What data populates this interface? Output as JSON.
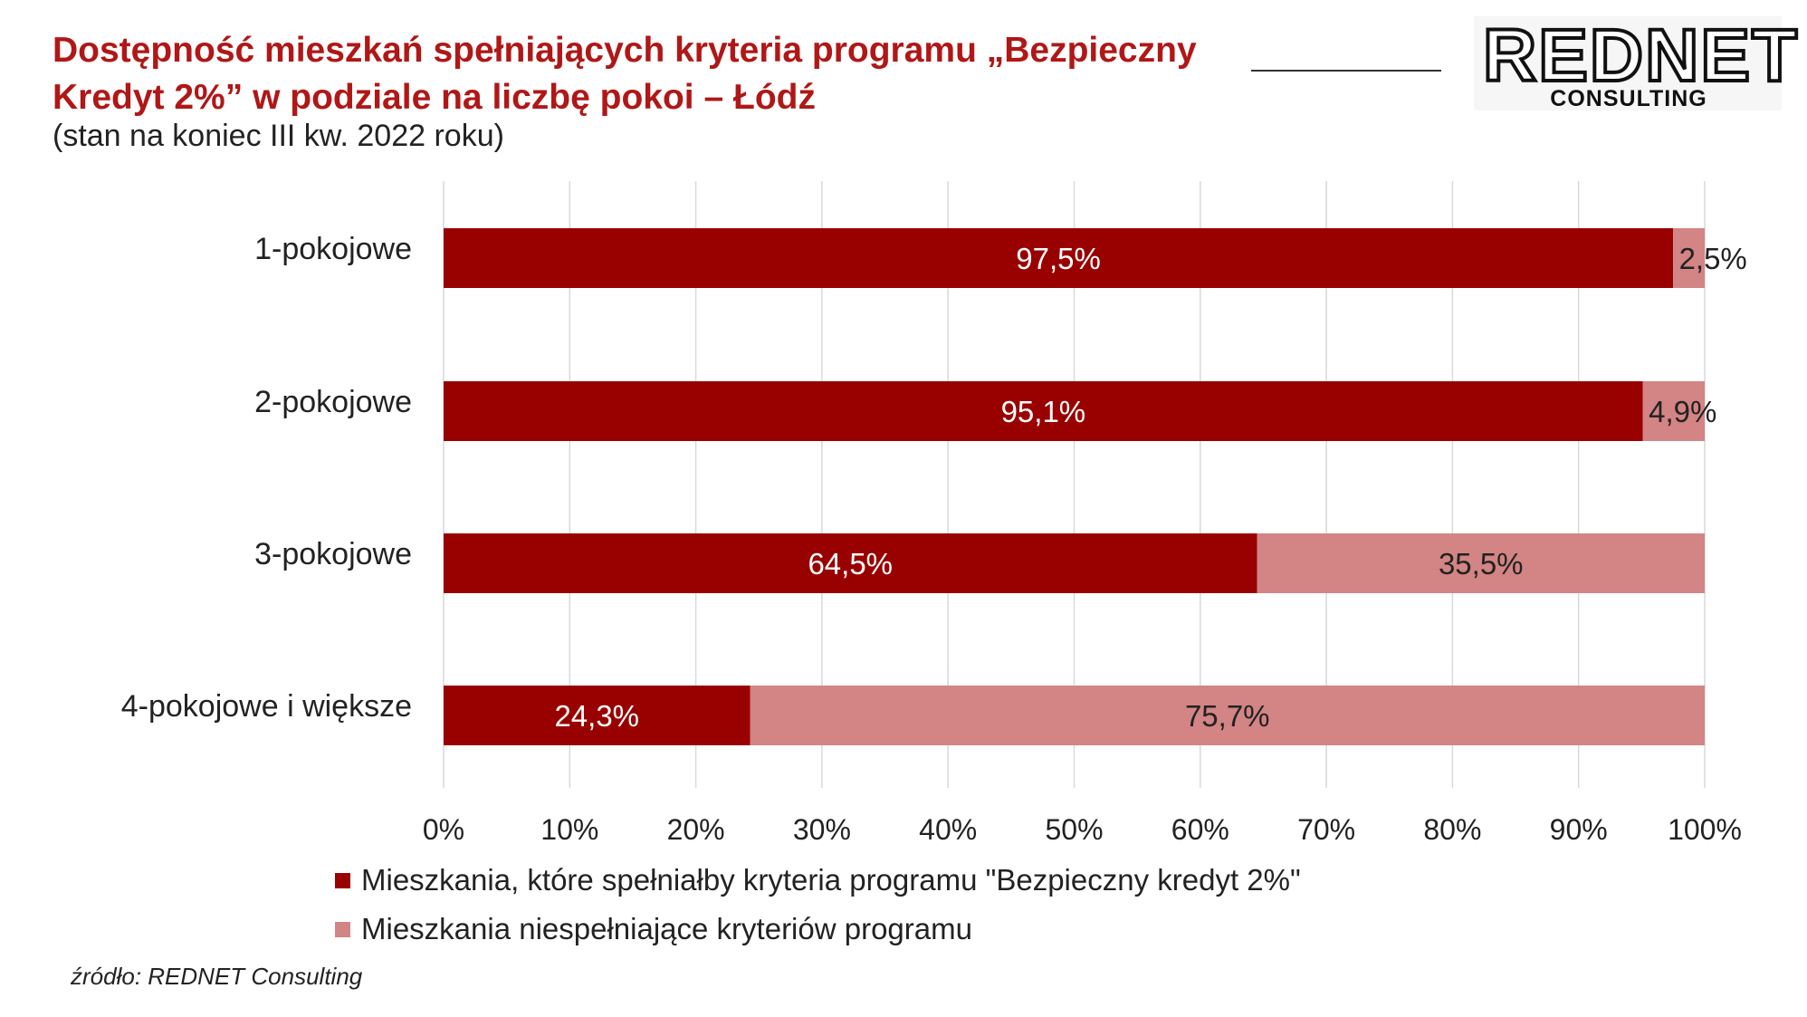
{
  "header": {
    "title": "Dostępność mieszkań spełniających kryteria programu „Bezpieczny Kredyt 2%” w podziale na liczbę pokoi – Łódź",
    "subtitle": "(stan na koniec III kw. 2022 roku)"
  },
  "logo": {
    "name": "REDNET",
    "sub": "CONSULTING"
  },
  "source": "źródło: REDNET Consulting",
  "colors": {
    "title": "#b01717",
    "series_meeting": "#990000",
    "series_not_meeting": "#d38484",
    "gridline": "#d9d9d9"
  },
  "chart_data": {
    "type": "bar",
    "orientation": "horizontal",
    "stacked": true,
    "categories": [
      "1-pokojowe",
      "2-pokojowe",
      "3-pokojowe",
      "4-pokojowe i większe"
    ],
    "series": [
      {
        "name": "Mieszkania, które spełniałby kryteria programu \"Bezpieczny kredyt 2%\"",
        "values": [
          97.5,
          95.1,
          64.5,
          24.3
        ],
        "labels": [
          "97,5%",
          "95,1%",
          "64,5%",
          "24,3%"
        ],
        "color": "#990000"
      },
      {
        "name": "Mieszkania niespełniające kryteriów programu",
        "values": [
          2.5,
          4.9,
          35.5,
          75.7
        ],
        "labels": [
          "2,5%",
          "4,9%",
          "35,5%",
          "75,7%"
        ],
        "color": "#d38484"
      }
    ],
    "xlim": [
      0,
      100
    ],
    "xticks": [
      "0%",
      "10%",
      "20%",
      "30%",
      "40%",
      "50%",
      "60%",
      "70%",
      "80%",
      "90%",
      "100%"
    ],
    "grid": true,
    "legend_position": "bottom"
  }
}
